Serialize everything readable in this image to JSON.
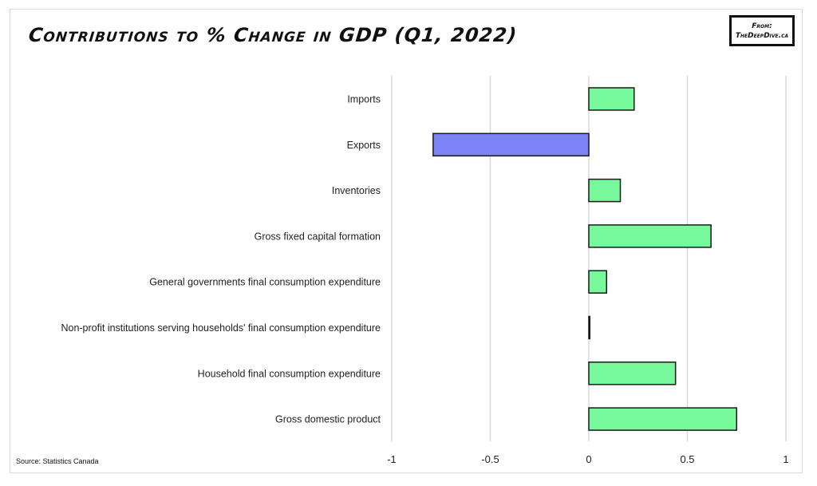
{
  "title": "Contributions to % Change in GDP (Q1, 2022)",
  "badge": {
    "line1": "From:",
    "line2": "TheDeepDive.ca"
  },
  "source": "Source: Statistics Canada",
  "colors": {
    "positive": "#77f89b",
    "negative": "#7b83f5",
    "outline": "#1a1a1a",
    "grid": "#d9d9d9"
  },
  "chart_data": {
    "type": "bar",
    "orientation": "horizontal",
    "title": "Contributions to % Change in GDP (Q1, 2022)",
    "xlabel": "",
    "ylabel": "",
    "xlim": [
      -1,
      1
    ],
    "xticks": [
      -1,
      -0.5,
      0,
      0.5,
      1
    ],
    "xtick_labels": [
      "-1",
      "-0.5",
      "0",
      "0.5",
      "1"
    ],
    "grid": true,
    "categories": [
      "Imports",
      "Exports",
      "Inventories",
      "Gross fixed capital formation",
      "General governments final consumption expenditure",
      "Non-profit institutions serving households' final consumption expenditure",
      "Household final consumption expenditure",
      "Gross domestic product"
    ],
    "values": [
      0.23,
      -0.79,
      0.16,
      0.62,
      0.09,
      0.005,
      0.44,
      0.75
    ]
  }
}
